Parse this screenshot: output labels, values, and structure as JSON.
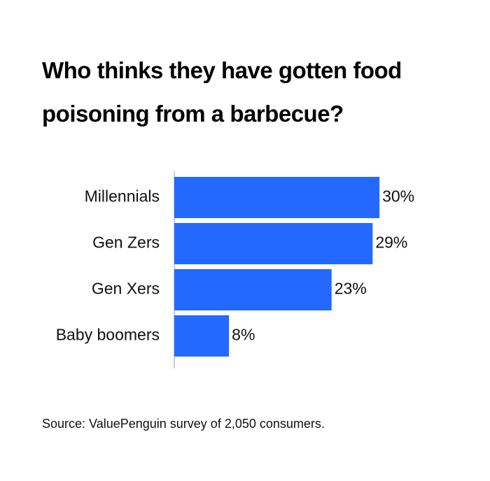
{
  "chart_data": {
    "type": "bar",
    "orientation": "horizontal",
    "title": "Who thinks they have gotten food poisoning from a barbecue?",
    "categories": [
      "Millennials",
      "Gen Zers",
      "Gen Xers",
      "Baby boomers"
    ],
    "values": [
      30,
      29,
      23,
      8
    ],
    "value_labels": [
      "30%",
      "29%",
      "23%",
      "8%"
    ],
    "color": "#2369ff",
    "source": "Source: ValuePenguin survey of 2,050 consumers."
  }
}
